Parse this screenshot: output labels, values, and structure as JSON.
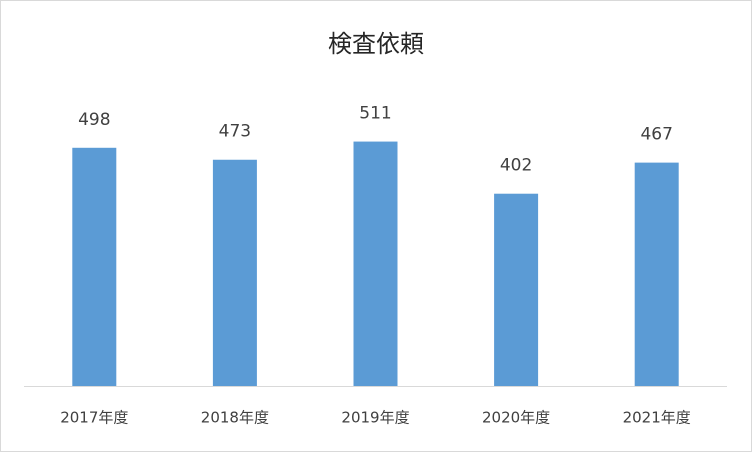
{
  "chart_data": {
    "type": "bar",
    "title": "検査依頼",
    "categories": [
      "2017年度",
      "2018年度",
      "2019年度",
      "2020年度",
      "2021年度"
    ],
    "values": [
      498,
      473,
      511,
      402,
      467
    ],
    "color": "#5b9bd5",
    "ylim": [
      0,
      600
    ]
  }
}
